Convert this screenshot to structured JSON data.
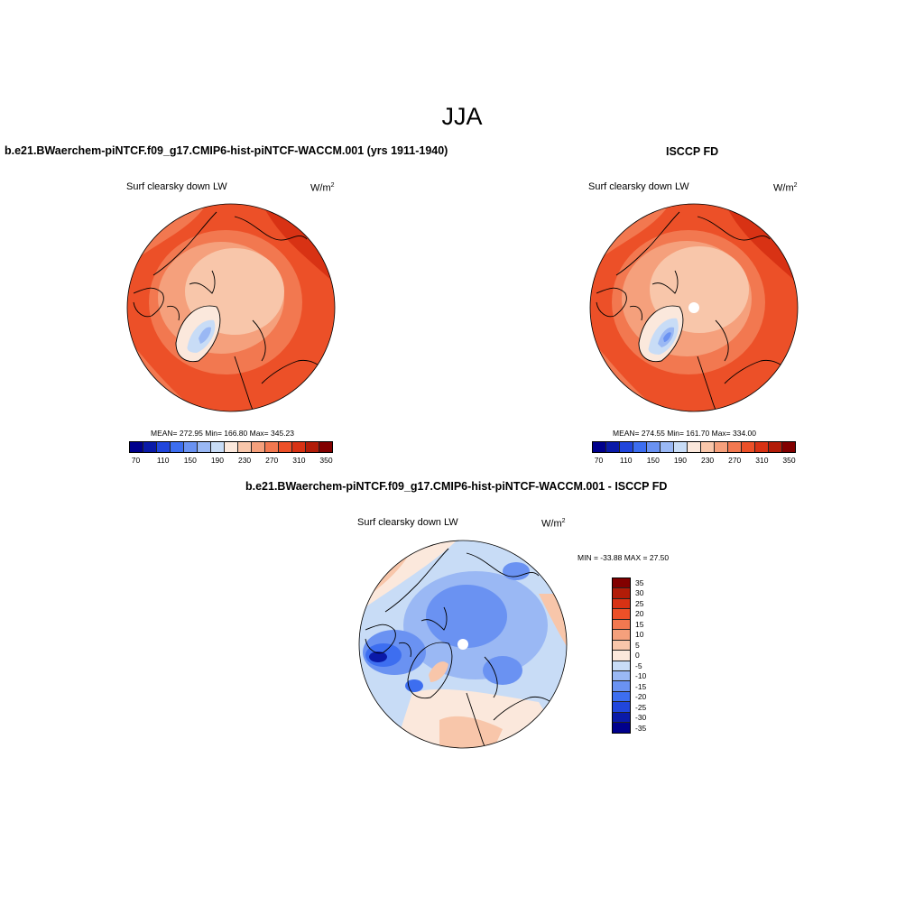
{
  "title": "JJA",
  "panels": {
    "model": {
      "title": "b.e21.BWaerchem-piNTCF.f09_g17.CMIP6-hist-piNTCF-WACCM.001 (yrs 1911-1940)",
      "variable": "Surf clearsky down LW",
      "units_base": "W/m",
      "units_exp": "2",
      "stats": "MEAN= 272.95  Min= 166.80  Max= 345.23"
    },
    "obs": {
      "title": "ISCCP FD",
      "variable": "Surf clearsky down LW",
      "units_base": "W/m",
      "units_exp": "2",
      "stats": "MEAN= 274.55  Min= 161.70  Max= 334.00"
    },
    "diff": {
      "title": "b.e21.BWaerchem-piNTCF.f09_g17.CMIP6-hist-piNTCF-WACCM.001 - ISCCP FD",
      "variable": "Surf clearsky down LW",
      "units_base": "W/m",
      "units_exp": "2",
      "stats": "MIN = -33.88 MAX =  27.50"
    }
  },
  "colorbars": {
    "absolute": {
      "colors": [
        "#00008c",
        "#0a1aa8",
        "#2146dc",
        "#3d6ef0",
        "#6a92f2",
        "#9ab8f4",
        "#c8dcf6",
        "#fbe8dc",
        "#f8c6aa",
        "#f5a07c",
        "#f27850",
        "#ec5028",
        "#d83214",
        "#b21c08",
        "#820000"
      ],
      "tick_labels": [
        "70",
        "110",
        "150",
        "190",
        "230",
        "270",
        "310",
        "350"
      ]
    },
    "difference": {
      "colors": [
        "#820000",
        "#b21c08",
        "#d83214",
        "#ec5028",
        "#f27850",
        "#f5a07c",
        "#f8c6aa",
        "#fbe8dc",
        "#c8dcf6",
        "#9ab8f4",
        "#6a92f2",
        "#3d6ef0",
        "#2146dc",
        "#0a1aa8",
        "#00008c"
      ],
      "tick_labels": [
        "35",
        "30",
        "25",
        "20",
        "15",
        "10",
        "5",
        "0",
        "-5",
        "-10",
        "-15",
        "-20",
        "-25",
        "-30",
        "-35"
      ]
    }
  }
}
